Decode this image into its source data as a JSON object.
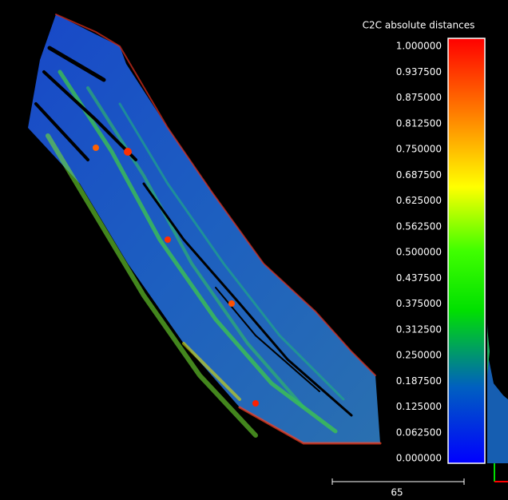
{
  "colorbar": {
    "title": "C2C absolute distances",
    "labels": [
      "1.000000",
      "0.937500",
      "0.875000",
      "0.812500",
      "0.750000",
      "0.687500",
      "0.625000",
      "0.562500",
      "0.500000",
      "0.437500",
      "0.375000",
      "0.312500",
      "0.250000",
      "0.187500",
      "0.125000",
      "0.062500",
      "0.000000"
    ]
  },
  "scale_bar": {
    "label": "65"
  }
}
